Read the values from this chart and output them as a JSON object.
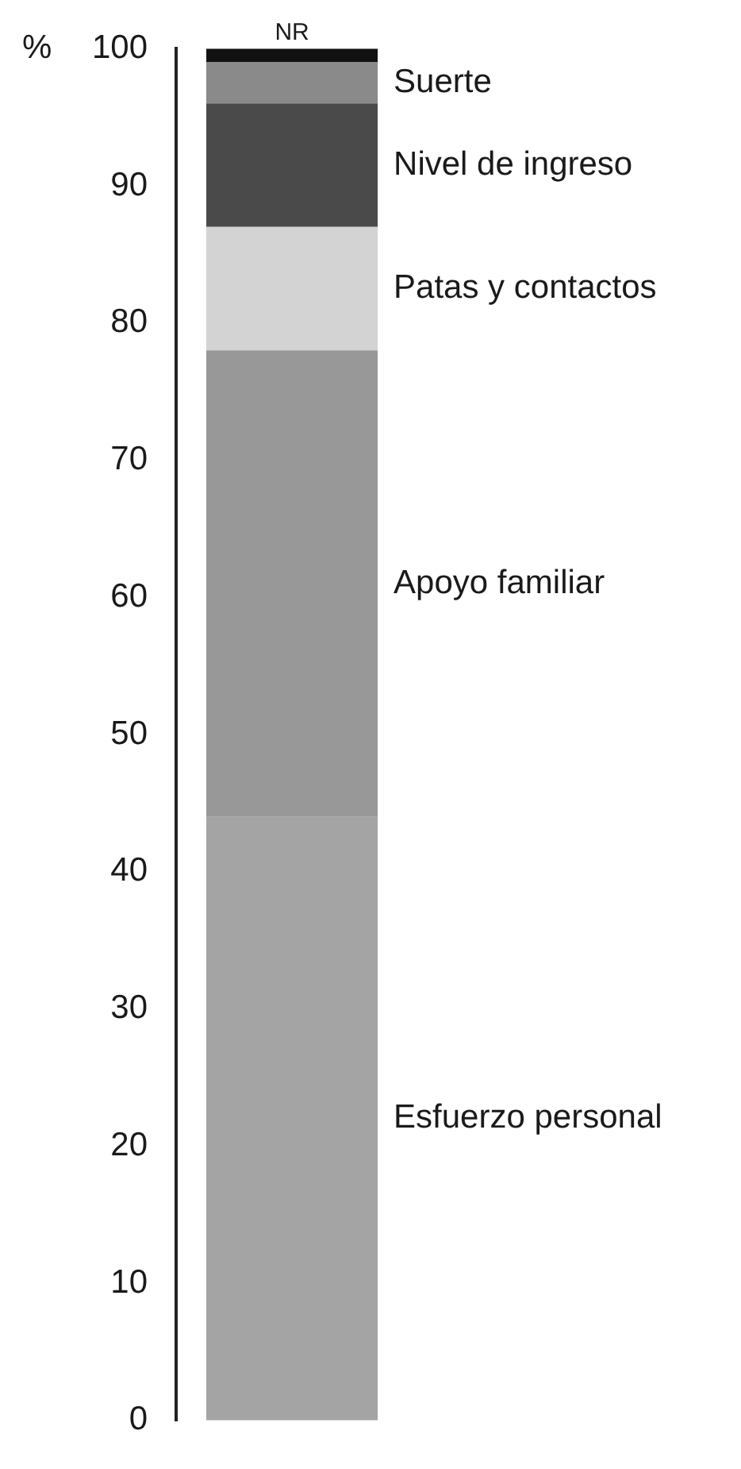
{
  "chart_data": {
    "type": "bar",
    "stacked": true,
    "ylabel": "%",
    "categories": [
      null
    ],
    "series": [
      {
        "name": "Esfuerzo personal",
        "color": "#a4a4a4",
        "values": [
          44
        ]
      },
      {
        "name": "Apoyo familiar",
        "color": "#989898",
        "values": [
          34
        ]
      },
      {
        "name": "Patas y contactos",
        "color": "#d3d3d3",
        "values": [
          9
        ]
      },
      {
        "name": "Nivel de ingreso",
        "color": "#4a4a4a",
        "values": [
          9
        ]
      },
      {
        "name": "Suerte",
        "color": "#8a8a8a",
        "values": [
          3
        ]
      },
      {
        "name": "NR",
        "color": "#111111",
        "values": [
          1
        ]
      }
    ],
    "ylim": [
      0,
      100
    ],
    "yticks": [
      0,
      10,
      20,
      30,
      40,
      50,
      60,
      70,
      80,
      90,
      100
    ],
    "grid": false,
    "legend": false,
    "tick_labels": "y"
  }
}
